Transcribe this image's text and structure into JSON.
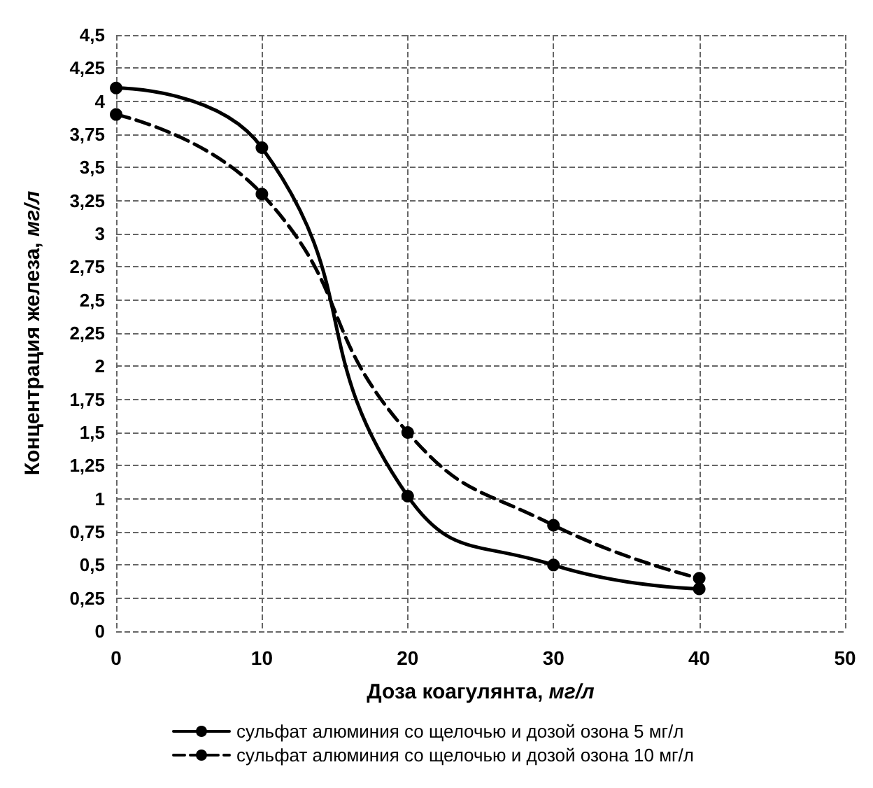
{
  "chart_data": {
    "type": "line",
    "xlabel": "Доза коагулянта, мг/л",
    "ylabel": "Концентрация железа, мг/л",
    "x": [
      0,
      10,
      20,
      30,
      40
    ],
    "series": [
      {
        "name": "сульфат алюминия со щелочью и дозой озона 5 мг/л",
        "color": "#000000",
        "values": [
          4.1,
          3.65,
          1.02,
          0.5,
          0.32
        ],
        "line_style": "solid"
      },
      {
        "name": "сульфат алюминия со щелочью и дозой озона 10 мг/л",
        "color": "#000000",
        "values": [
          3.9,
          3.3,
          1.5,
          0.8,
          0.4
        ],
        "line_style": "dashed"
      }
    ],
    "xlim": [
      0,
      50
    ],
    "xticks": [
      0,
      10,
      20,
      30,
      40,
      50
    ],
    "ylim": [
      0,
      4.5
    ],
    "yticks": [
      0,
      {
        "value": 0.25,
        "label": "0,25"
      },
      {
        "value": 0.5,
        "label": "0,5"
      },
      {
        "value": 0.75,
        "label": "0,75"
      },
      1,
      {
        "value": 1.25,
        "label": "1,25"
      },
      {
        "value": 1.5,
        "label": "1,5"
      },
      {
        "value": 1.75,
        "label": "1,75"
      },
      2,
      {
        "value": 2.25,
        "label": "2,25"
      },
      {
        "value": 2.5,
        "label": "2,5"
      },
      {
        "value": 2.75,
        "label": "2,75"
      },
      3,
      {
        "value": 3.25,
        "label": "3,25"
      },
      {
        "value": 3.5,
        "label": "3,5"
      },
      {
        "value": 3.75,
        "label": "3,75"
      },
      4,
      {
        "value": 4.25,
        "label": "4,25"
      },
      {
        "value": 4.5,
        "label": "4,5"
      }
    ],
    "grid": true,
    "legend": "bottom",
    "marker": "circle"
  }
}
